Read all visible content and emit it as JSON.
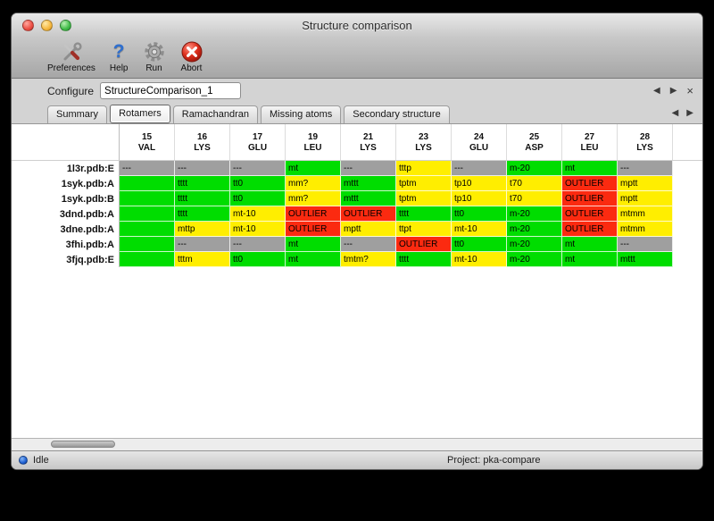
{
  "window": {
    "title": "Structure comparison"
  },
  "toolbar": {
    "items": [
      {
        "label": "Preferences",
        "icon": "tools-icon"
      },
      {
        "label": "Help",
        "icon": "help-icon",
        "glyph": "?"
      },
      {
        "label": "Run",
        "icon": "gear-icon"
      },
      {
        "label": "Abort",
        "icon": "abort-icon"
      }
    ]
  },
  "configure": {
    "label": "Configure",
    "value": "StructureComparison_1",
    "nav": {
      "prev": "◀",
      "next": "▶",
      "close": "×"
    }
  },
  "tabs": {
    "items": [
      "Summary",
      "Rotamers",
      "Ramachandran",
      "Missing atoms",
      "Secondary structure"
    ],
    "selected": "Rotamers",
    "nav": {
      "prev": "◀",
      "next": "▶"
    }
  },
  "colors": {
    "green": "#00dd00",
    "yellow": "#ffee00",
    "red": "#fb2a10",
    "gray": "#9f9f9f"
  },
  "table": {
    "columns": [
      {
        "num": "15",
        "res": "VAL"
      },
      {
        "num": "16",
        "res": "LYS"
      },
      {
        "num": "17",
        "res": "GLU"
      },
      {
        "num": "19",
        "res": "LEU"
      },
      {
        "num": "21",
        "res": "LYS"
      },
      {
        "num": "23",
        "res": "LYS"
      },
      {
        "num": "24",
        "res": "GLU"
      },
      {
        "num": "25",
        "res": "ASP"
      },
      {
        "num": "27",
        "res": "LEU"
      },
      {
        "num": "28",
        "res": "LYS"
      }
    ],
    "rows": [
      {
        "name": "1l3r.pdb:E",
        "cells": [
          {
            "text": "---",
            "color": "gray"
          },
          {
            "text": "---",
            "color": "gray"
          },
          {
            "text": "---",
            "color": "gray"
          },
          {
            "text": "mt",
            "color": "green"
          },
          {
            "text": "---",
            "color": "gray"
          },
          {
            "text": "tttp",
            "color": "yellow"
          },
          {
            "text": "---",
            "color": "gray"
          },
          {
            "text": "m-20",
            "color": "green"
          },
          {
            "text": "mt",
            "color": "green"
          },
          {
            "text": "---",
            "color": "gray"
          }
        ]
      },
      {
        "name": "1syk.pdb:A",
        "cells": [
          {
            "text": "",
            "color": "green"
          },
          {
            "text": "tttt",
            "color": "green"
          },
          {
            "text": "tt0",
            "color": "green"
          },
          {
            "text": "mm?",
            "color": "yellow"
          },
          {
            "text": "mttt",
            "color": "green"
          },
          {
            "text": "tptm",
            "color": "yellow"
          },
          {
            "text": "tp10",
            "color": "yellow"
          },
          {
            "text": "t70",
            "color": "yellow"
          },
          {
            "text": "OUTLIER",
            "color": "red"
          },
          {
            "text": "mptt",
            "color": "yellow"
          }
        ]
      },
      {
        "name": "1syk.pdb:B",
        "cells": [
          {
            "text": "",
            "color": "green"
          },
          {
            "text": "tttt",
            "color": "green"
          },
          {
            "text": "tt0",
            "color": "green"
          },
          {
            "text": "mm?",
            "color": "yellow"
          },
          {
            "text": "mttt",
            "color": "green"
          },
          {
            "text": "tptm",
            "color": "yellow"
          },
          {
            "text": "tp10",
            "color": "yellow"
          },
          {
            "text": "t70",
            "color": "yellow"
          },
          {
            "text": "OUTLIER",
            "color": "red"
          },
          {
            "text": "mptt",
            "color": "yellow"
          }
        ]
      },
      {
        "name": "3dnd.pdb:A",
        "cells": [
          {
            "text": "",
            "color": "green"
          },
          {
            "text": "tttt",
            "color": "green"
          },
          {
            "text": "mt-10",
            "color": "yellow"
          },
          {
            "text": "OUTLIER",
            "color": "red"
          },
          {
            "text": "OUTLIER",
            "color": "red"
          },
          {
            "text": "tttt",
            "color": "green"
          },
          {
            "text": "tt0",
            "color": "green"
          },
          {
            "text": "m-20",
            "color": "green"
          },
          {
            "text": "OUTLIER",
            "color": "red"
          },
          {
            "text": "mtmm",
            "color": "yellow"
          }
        ]
      },
      {
        "name": "3dne.pdb:A",
        "cells": [
          {
            "text": "",
            "color": "green"
          },
          {
            "text": "mttp",
            "color": "yellow"
          },
          {
            "text": "mt-10",
            "color": "yellow"
          },
          {
            "text": "OUTLIER",
            "color": "red"
          },
          {
            "text": "mptt",
            "color": "yellow"
          },
          {
            "text": "ttpt",
            "color": "yellow"
          },
          {
            "text": "mt-10",
            "color": "yellow"
          },
          {
            "text": "m-20",
            "color": "green"
          },
          {
            "text": "OUTLIER",
            "color": "red"
          },
          {
            "text": "mtmm",
            "color": "yellow"
          }
        ]
      },
      {
        "name": "3fhi.pdb:A",
        "cells": [
          {
            "text": "",
            "color": "green"
          },
          {
            "text": "---",
            "color": "gray"
          },
          {
            "text": "---",
            "color": "gray"
          },
          {
            "text": "mt",
            "color": "green"
          },
          {
            "text": "---",
            "color": "gray"
          },
          {
            "text": "OUTLIER",
            "color": "red"
          },
          {
            "text": "tt0",
            "color": "green"
          },
          {
            "text": "m-20",
            "color": "green"
          },
          {
            "text": "mt",
            "color": "green"
          },
          {
            "text": "---",
            "color": "gray"
          }
        ]
      },
      {
        "name": "3fjq.pdb:E",
        "cells": [
          {
            "text": "",
            "color": "green"
          },
          {
            "text": "tttm",
            "color": "yellow"
          },
          {
            "text": "tt0",
            "color": "green"
          },
          {
            "text": "mt",
            "color": "green"
          },
          {
            "text": "tmtm?",
            "color": "yellow"
          },
          {
            "text": "tttt",
            "color": "green"
          },
          {
            "text": "mt-10",
            "color": "yellow"
          },
          {
            "text": "m-20",
            "color": "green"
          },
          {
            "text": "mt",
            "color": "green"
          },
          {
            "text": "mttt",
            "color": "green"
          }
        ]
      }
    ]
  },
  "statusbar": {
    "status": "Idle",
    "project": "Project: pka-compare"
  }
}
